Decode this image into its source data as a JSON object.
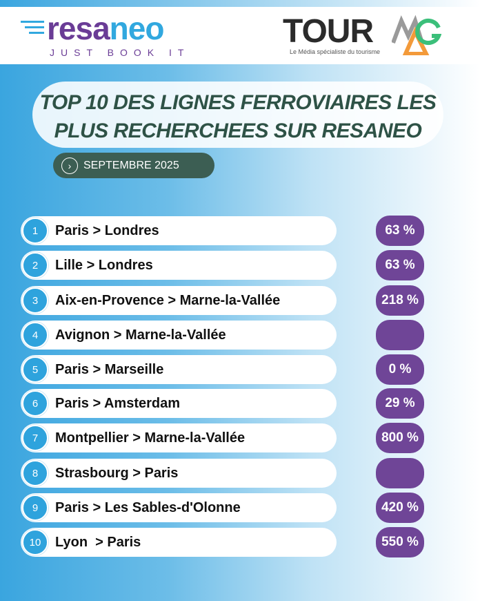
{
  "header": {
    "resaneo_logo": {
      "part1": "resa",
      "part2": "neo",
      "tagline": "JUST BOOK IT"
    },
    "tourmag_logo": {
      "word": "TOUR",
      "tagline": "Le Média spécialiste du tourisme"
    }
  },
  "title": {
    "line1": "TOP 10 DES LIGNES FERROVIAIRES LES",
    "line2": "PLUS RECHERCHEES SUR RESANEO"
  },
  "period": {
    "icon": "chevron-right-icon",
    "label": "SEPTEMBRE 2025"
  },
  "colors": {
    "badge": "#6f4597",
    "number": "#2ea3dd",
    "title": "#2e5246"
  },
  "ranking": [
    {
      "rank": "1",
      "route": "Paris > Londres",
      "change": "63 %"
    },
    {
      "rank": "2",
      "route": "Lille > Londres",
      "change": "63 %"
    },
    {
      "rank": "3",
      "route": "Aix-en-Provence > Marne-la-Vallée",
      "change": "218 %"
    },
    {
      "rank": "4",
      "route": "Avignon > Marne-la-Vallée",
      "change": ""
    },
    {
      "rank": "5",
      "route": "Paris > Marseille",
      "change": "0 %"
    },
    {
      "rank": "6",
      "route": "Paris > Amsterdam",
      "change": "29 %"
    },
    {
      "rank": "7",
      "route": "Montpellier > Marne-la-Vallée",
      "change": "800 %"
    },
    {
      "rank": "8",
      "route": "Strasbourg > Paris",
      "change": ""
    },
    {
      "rank": "9",
      "route": "Paris > Les Sables-d'Olonne",
      "change": "420 %"
    },
    {
      "rank": "10",
      "route": "Lyon  > Paris",
      "change": "550 %"
    }
  ]
}
